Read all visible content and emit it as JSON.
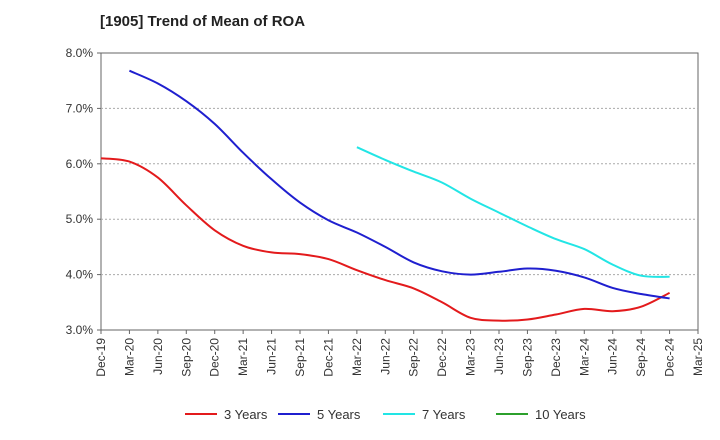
{
  "chart_data": {
    "type": "line",
    "title": "[1905]  Trend of Mean of ROA",
    "xlabel": "",
    "ylabel": "",
    "ylim": [
      3.0,
      8.0
    ],
    "yticks": [
      "3.0%",
      "4.0%",
      "5.0%",
      "6.0%",
      "7.0%",
      "8.0%"
    ],
    "categories": [
      "Dec-19",
      "Mar-20",
      "Jun-20",
      "Sep-20",
      "Dec-20",
      "Mar-21",
      "Jun-21",
      "Sep-21",
      "Dec-21",
      "Mar-22",
      "Jun-22",
      "Sep-22",
      "Dec-22",
      "Mar-23",
      "Jun-23",
      "Sep-23",
      "Dec-23",
      "Mar-24",
      "Jun-24",
      "Sep-24",
      "Dec-24",
      "Mar-25"
    ],
    "grid": true,
    "legend_position": "bottom",
    "series": [
      {
        "name": "3 Years",
        "color": "#e31a1c",
        "values": [
          6.1,
          6.04,
          5.75,
          5.25,
          4.8,
          4.52,
          4.4,
          4.37,
          4.28,
          4.08,
          3.9,
          3.75,
          3.5,
          3.22,
          3.17,
          3.19,
          3.28,
          3.38,
          3.34,
          3.42,
          3.67,
          null
        ]
      },
      {
        "name": "5 Years",
        "color": "#1f1fcf",
        "values": [
          null,
          7.68,
          7.45,
          7.13,
          6.72,
          6.2,
          5.72,
          5.3,
          4.98,
          4.76,
          4.5,
          4.22,
          4.06,
          4.0,
          4.05,
          4.11,
          4.07,
          3.95,
          3.76,
          3.65,
          3.57,
          null
        ]
      },
      {
        "name": "7 Years",
        "color": "#22e5e5",
        "values": [
          null,
          null,
          null,
          null,
          null,
          null,
          null,
          null,
          null,
          6.3,
          6.07,
          5.86,
          5.66,
          5.37,
          5.12,
          4.87,
          4.64,
          4.46,
          4.18,
          3.98,
          3.96,
          null
        ]
      },
      {
        "name": "10 Years",
        "color": "#2ca02c",
        "values": [
          null,
          null,
          null,
          null,
          null,
          null,
          null,
          null,
          null,
          null,
          null,
          null,
          null,
          null,
          null,
          null,
          null,
          null,
          null,
          null,
          null,
          null
        ]
      }
    ]
  }
}
